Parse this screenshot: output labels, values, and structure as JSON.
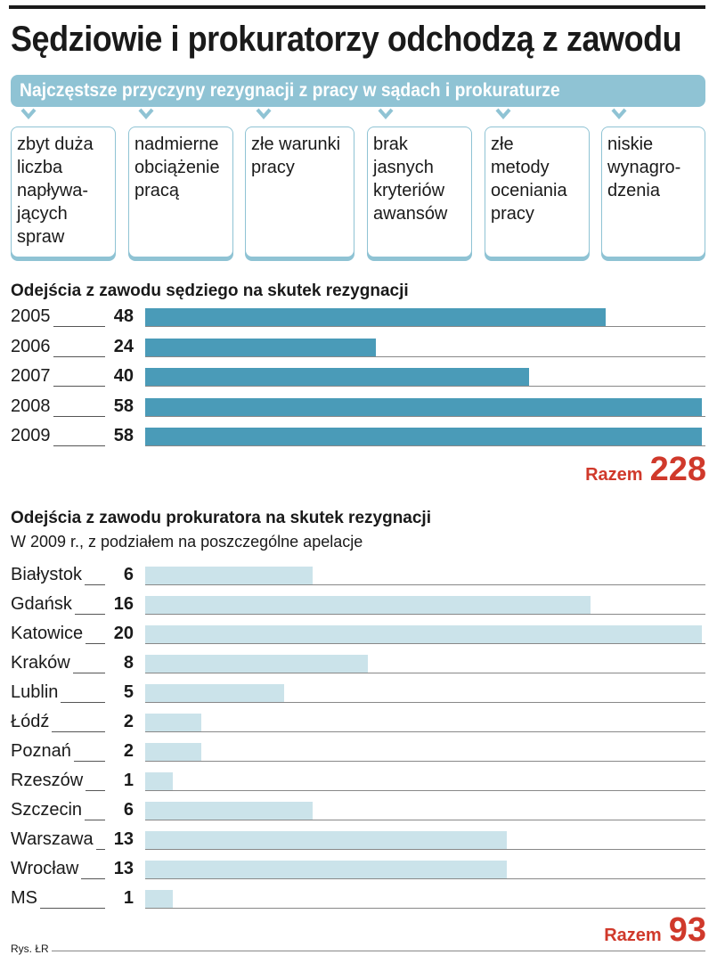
{
  "title": "Sędziowie i prokuratorzy odchodzą z zawodu",
  "banner": "Najczęstsze przyczyny rezygnacji z pracy w sądach i prokuraturze",
  "reasons": [
    "zbyt duża\nliczba\nnapływa-\njących\nspraw",
    "nadmierne\nobciążenie\npracą",
    "złe warunki\npracy",
    "brak\njasnych\nkryteriów\nawansów",
    "złe\nmetody\noceniania\npracy",
    "niskie\nwynagro-\ndzenia"
  ],
  "colors": {
    "judges_bar": "#4a9bb8",
    "prosecutors_bar": "#cbe3ea",
    "total": "#d0392b",
    "accent": "#8fc3d4"
  },
  "chart_data": [
    {
      "type": "bar",
      "title": "Odejścia z zawodu sędziego na skutek rezygnacji",
      "categories": [
        "2005",
        "2006",
        "2007",
        "2008",
        "2009"
      ],
      "values": [
        48,
        24,
        40,
        58,
        58
      ],
      "xlim": [
        0,
        58
      ],
      "total_label": "Razem",
      "total_value": "228"
    },
    {
      "type": "bar",
      "title": "Odejścia z zawodu prokuratora na skutek rezygnacji",
      "subtitle": "W 2009 r., z podziałem na poszczególne apelacje",
      "categories": [
        "Białystok",
        "Gdańsk",
        "Katowice",
        "Kraków",
        "Lublin",
        "Łódź",
        "Poznań",
        "Rzeszów",
        "Szczecin",
        "Warszawa",
        "Wrocław",
        "MS"
      ],
      "values": [
        6,
        16,
        20,
        8,
        5,
        2,
        2,
        1,
        6,
        13,
        13,
        1
      ],
      "xlim": [
        0,
        20
      ],
      "total_label": "Razem",
      "total_value": "93"
    }
  ],
  "footer": "Rys. ŁR"
}
